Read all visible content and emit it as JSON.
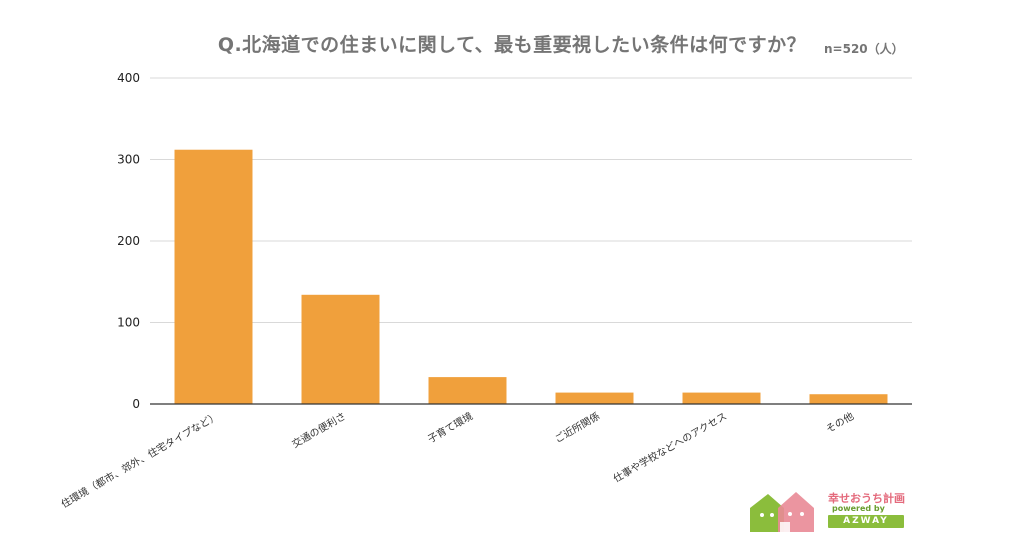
{
  "title": "Q.北海道での住まいに関して、最も重要視したい条件は何ですか？",
  "sample_note": "n=520（人）",
  "chart_data": {
    "type": "bar",
    "title": "Q.北海道での住まいに関して、最も重要視したい条件は何ですか？",
    "categories": [
      "住環境（都市、郊外、住宅タイプなど）",
      "交通の便利さ",
      "子育て環境",
      "ご近所関係",
      "仕事や学校などへのアクセス",
      "その他"
    ],
    "values": [
      312,
      134,
      33,
      14,
      14,
      12
    ],
    "ylim": [
      0,
      400
    ],
    "yticks": [
      0,
      100,
      200,
      300,
      400
    ],
    "grid": true,
    "bar_color": "#f0a03c",
    "grid_color": "#d9d9d9",
    "axis_color": "#333333"
  },
  "logo": {
    "name": "幸せおうち計画",
    "powered": "powered by",
    "brand": "AZWAY",
    "colors": {
      "green": "#8bbd3c",
      "pink": "#e98a96"
    }
  }
}
